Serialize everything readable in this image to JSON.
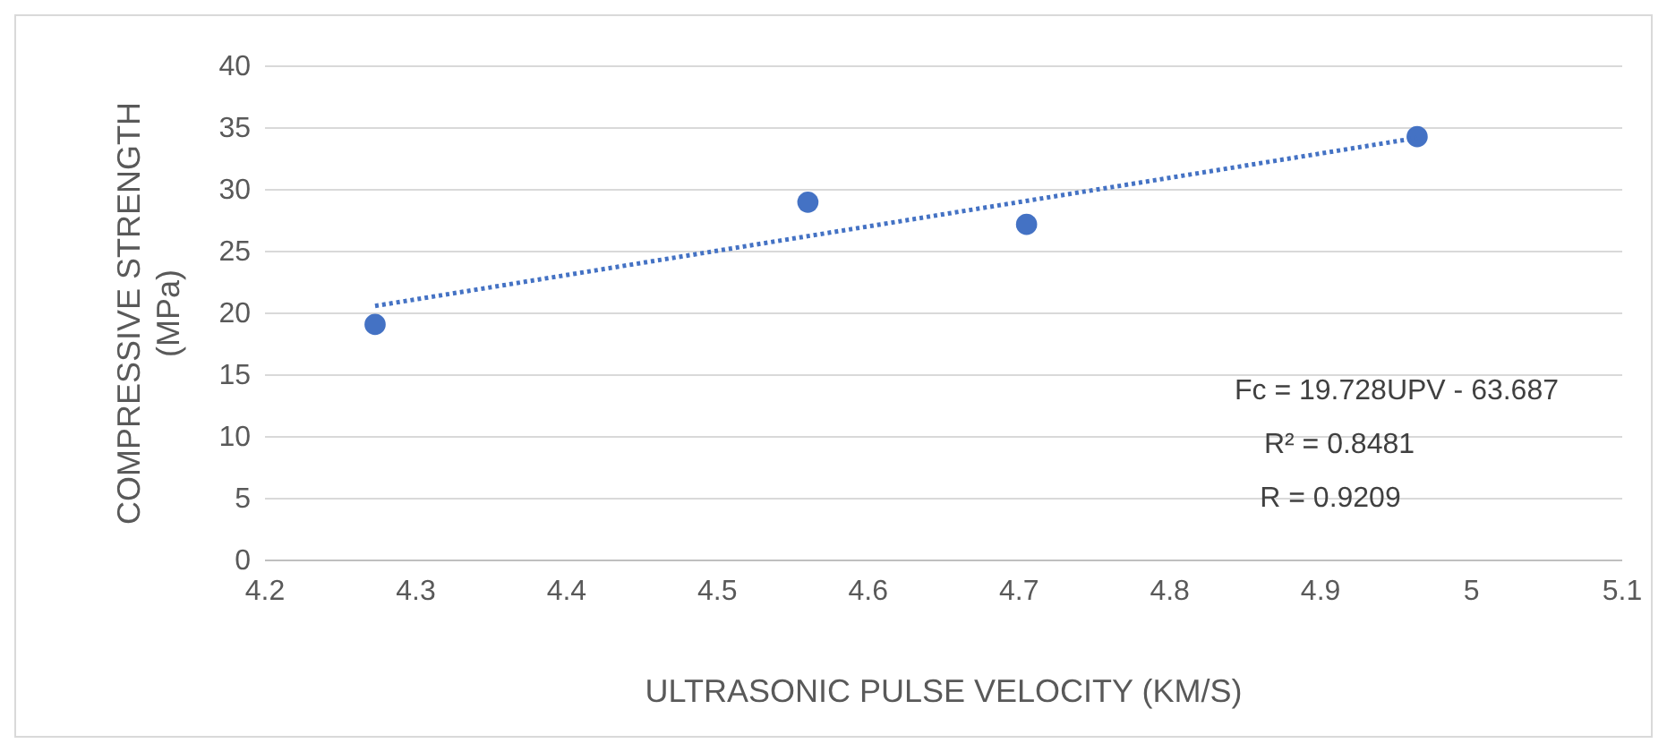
{
  "chart_data": {
    "type": "scatter",
    "xlabel": "ULTRASONIC PULSE VELOCITY (KM/S)",
    "ylabel": "COMPRESSIVE STRENGTH (MPa)",
    "xlim": [
      4.2,
      5.1
    ],
    "xticks": [
      4.2,
      4.3,
      4.4,
      4.5,
      4.6,
      4.7,
      4.8,
      4.9,
      5,
      5.1
    ],
    "ylim": [
      0,
      40
    ],
    "yticks": [
      0,
      5,
      10,
      15,
      20,
      25,
      30,
      35,
      40
    ],
    "grid": "y",
    "marker": "circle",
    "series": [
      {
        "color": "#4472c4",
        "x": [
          4.273,
          4.56,
          4.705,
          4.964
        ],
        "values": [
          19.1,
          29.0,
          27.2,
          34.3
        ]
      },
      {
        "type": "line",
        "color": "#4472c4",
        "line_style": "dotted",
        "marker": "none",
        "x": [
          4.273,
          4.964
        ],
        "values": [
          20.6,
          34.2
        ]
      }
    ],
    "annotations": [
      "Fc = 19.728UPV - 63.687",
      "R² = 0.8481",
      "R = 0.9209"
    ]
  }
}
